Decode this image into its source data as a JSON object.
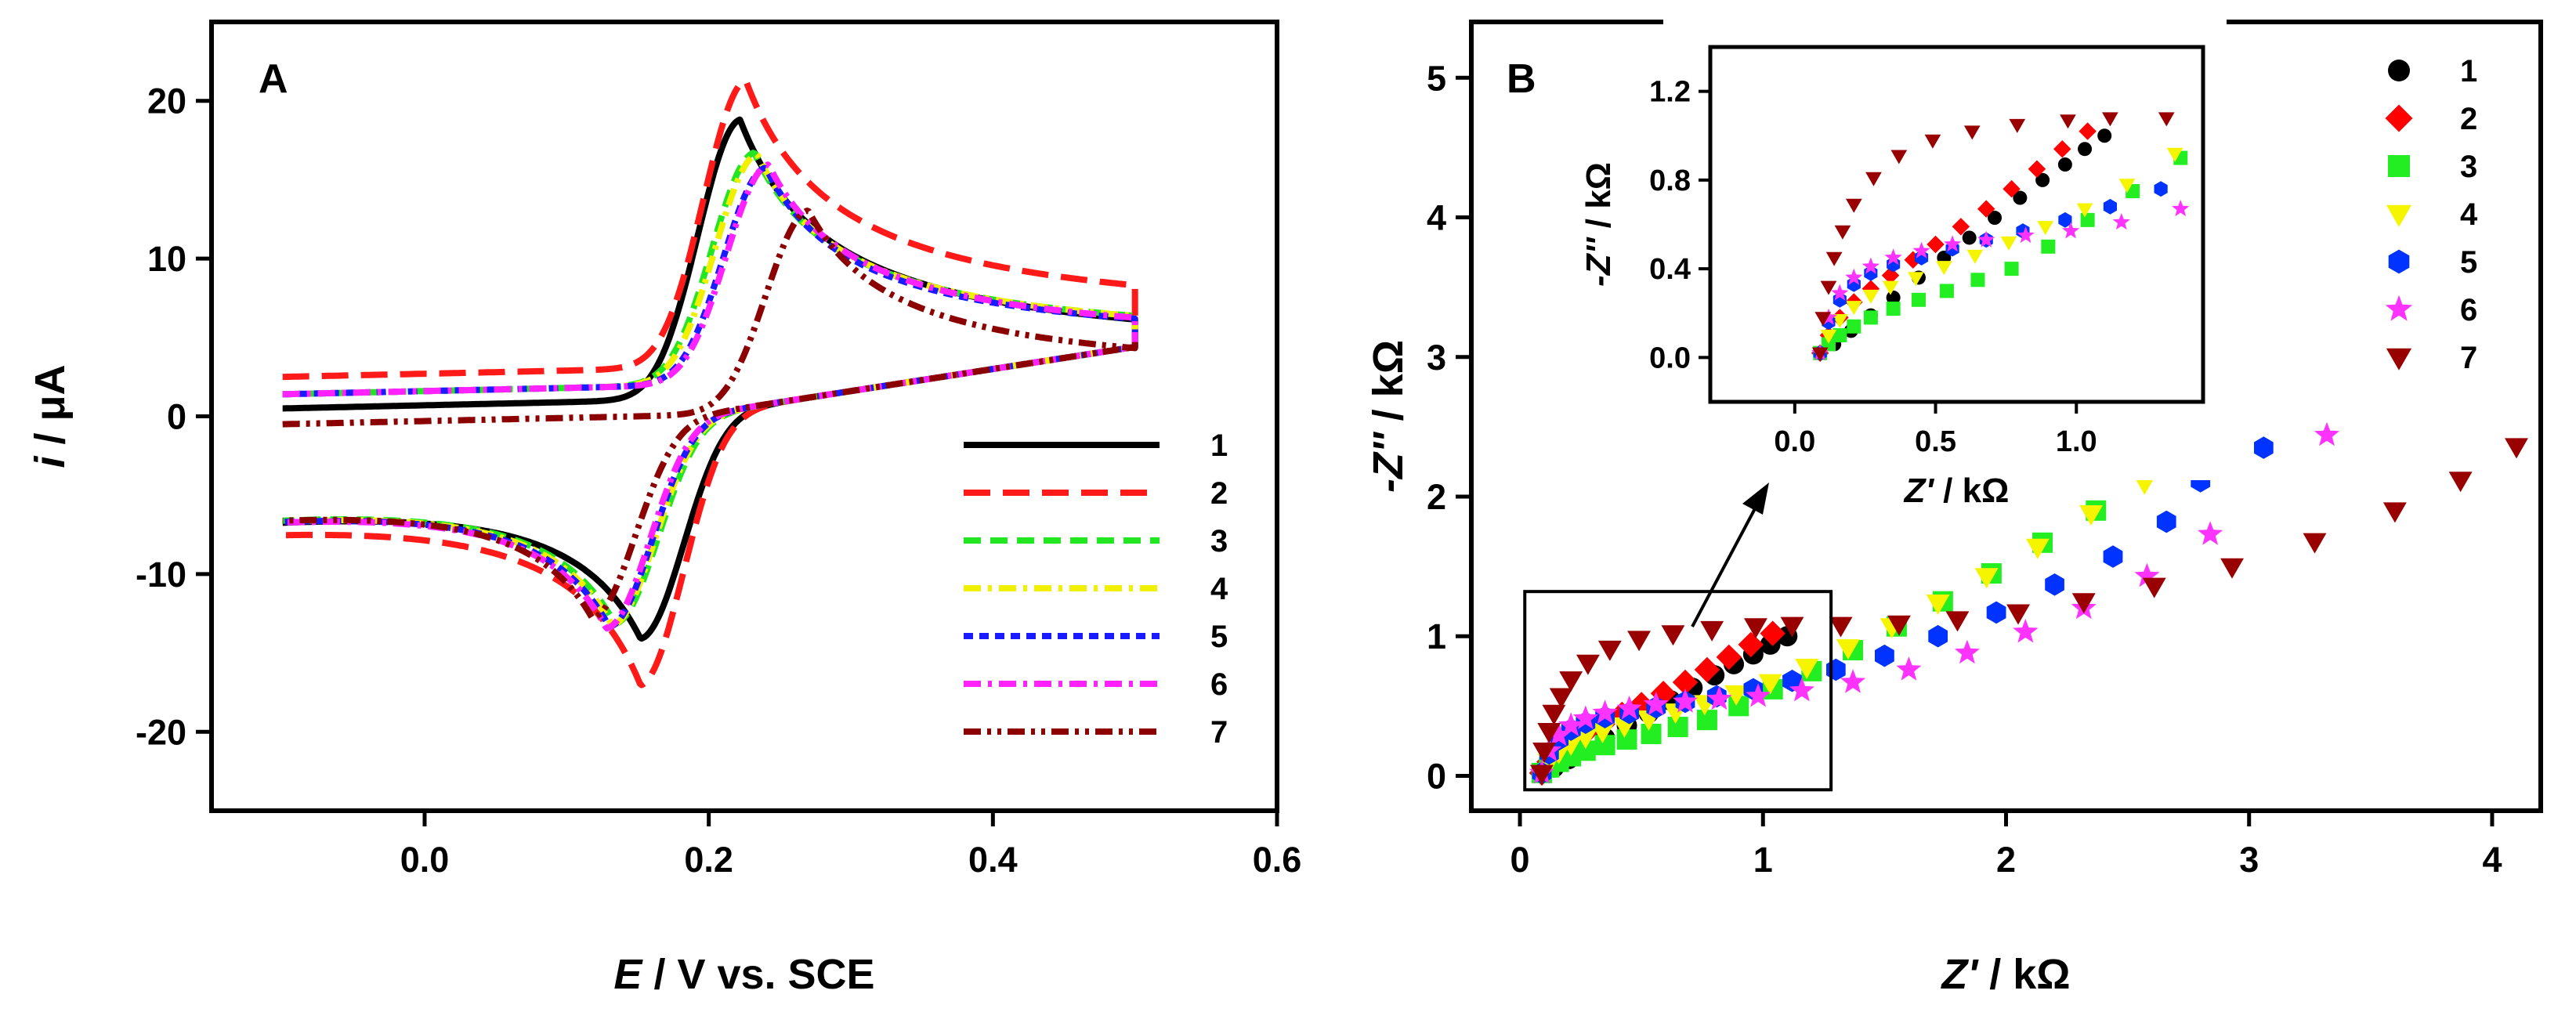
{
  "chart_data": [
    {
      "type": "line",
      "panel_label": "A",
      "xlabel": {
        "symbol": "E",
        "rest": " / V vs. SCE"
      },
      "ylabel": {
        "symbol": "i",
        "rest": " / μA"
      },
      "xlim": [
        -0.15,
        0.6
      ],
      "ylim": [
        -25,
        25
      ],
      "xticks": [
        0.0,
        0.2,
        0.4,
        0.6
      ],
      "yticks": [
        -20,
        -10,
        0,
        10,
        20
      ],
      "xtick_labels": [
        "0.0",
        "0.2",
        "0.4",
        "0.6"
      ],
      "ytick_labels": [
        "-20",
        "-10",
        "0",
        "10",
        "20"
      ],
      "legend_position": "bottom-right",
      "series": [
        {
          "name": "1",
          "color": "#000000",
          "dash": "solid",
          "E0": 0.185,
          "Ipa": 20.2,
          "Ipc": -14.8,
          "bg": 0.0,
          "E_pa": 0.222,
          "E_pc": 0.152
        },
        {
          "name": "2",
          "color": "#ff1a1a",
          "dash": "long-dash",
          "E0": 0.188,
          "Ipa": 22.7,
          "Ipc": -17.9,
          "bg": 2.0,
          "E_pa": 0.226,
          "E_pc": 0.152
        },
        {
          "name": "3",
          "color": "#22e622",
          "dash": "dash",
          "E0": 0.19,
          "Ipa": 18.0,
          "Ipc": -13.8,
          "bg": 0.9,
          "E_pa": 0.232,
          "E_pc": 0.134
        },
        {
          "name": "4",
          "color": "#f0f000",
          "dash": "dash-dot",
          "E0": 0.19,
          "Ipa": 17.9,
          "Ipc": -13.9,
          "bg": 0.9,
          "E_pa": 0.234,
          "E_pc": 0.132
        },
        {
          "name": "5",
          "color": "#1a1aff",
          "dash": "short-dash",
          "E0": 0.19,
          "Ipa": 17.0,
          "Ipc": -14.0,
          "bg": 0.9,
          "E_pa": 0.24,
          "E_pc": 0.13
        },
        {
          "name": "6",
          "color": "#ff22ff",
          "dash": "dash-dot",
          "E0": 0.19,
          "Ipa": 17.2,
          "Ipc": -14.1,
          "bg": 0.9,
          "E_pa": 0.242,
          "E_pc": 0.128
        },
        {
          "name": "7",
          "color": "#8b0000",
          "dash": "dash-dot-dot",
          "E0": 0.2,
          "Ipa": 14.2,
          "Ipc": -13.4,
          "bg": -1.0,
          "E_pa": 0.27,
          "E_pc": 0.118
        }
      ]
    },
    {
      "type": "scatter",
      "panel_label": "B",
      "xlabel": {
        "symbol": "Z'",
        "rest": " / kΩ"
      },
      "ylabel": {
        "symbol": "-Z''",
        "rest": " / kΩ"
      },
      "xlim": [
        -0.2,
        4.2
      ],
      "ylim": [
        -0.25,
        5.4
      ],
      "xticks": [
        0,
        1,
        2,
        3,
        4
      ],
      "yticks": [
        0,
        1,
        2,
        3,
        4,
        5
      ],
      "xtick_labels": [
        "0",
        "1",
        "2",
        "3",
        "4"
      ],
      "ytick_labels": [
        "0",
        "1",
        "2",
        "3",
        "4",
        "5"
      ],
      "legend_position": "top-right",
      "zoom_box": {
        "x": [
          0.02,
          1.28
        ],
        "y": [
          -0.1,
          1.32
        ]
      },
      "series": [
        {
          "name": "1",
          "color": "#000000",
          "marker": "circle",
          "x": [
            0.09,
            0.14,
            0.2,
            0.27,
            0.35,
            0.44,
            0.53,
            0.62,
            0.71,
            0.8,
            0.88,
            0.96,
            1.03,
            1.1
          ],
          "y": [
            0.02,
            0.06,
            0.12,
            0.19,
            0.27,
            0.36,
            0.45,
            0.54,
            0.63,
            0.72,
            0.8,
            0.87,
            0.94,
            1.0
          ]
        },
        {
          "name": "2",
          "color": "#ff0000",
          "marker": "diamond",
          "x": [
            0.09,
            0.12,
            0.16,
            0.21,
            0.27,
            0.34,
            0.42,
            0.5,
            0.59,
            0.68,
            0.77,
            0.86,
            0.95,
            1.04
          ],
          "y": [
            0.02,
            0.1,
            0.18,
            0.25,
            0.31,
            0.37,
            0.44,
            0.51,
            0.59,
            0.67,
            0.76,
            0.85,
            0.94,
            1.02
          ]
        },
        {
          "name": "3",
          "color": "#22ee22",
          "marker": "square",
          "x": [
            0.09,
            0.12,
            0.16,
            0.21,
            0.27,
            0.35,
            0.44,
            0.54,
            0.65,
            0.77,
            0.9,
            1.04,
            1.2,
            1.37,
            1.55,
            1.74,
            1.94,
            2.15,
            2.37,
            2.6
          ],
          "y": [
            0.02,
            0.06,
            0.1,
            0.14,
            0.18,
            0.22,
            0.26,
            0.3,
            0.35,
            0.4,
            0.5,
            0.62,
            0.75,
            0.9,
            1.07,
            1.25,
            1.45,
            1.67,
            1.9,
            2.24
          ]
        },
        {
          "name": "4",
          "color": "#f5f500",
          "marker": "triangle-down",
          "x": [
            0.09,
            0.12,
            0.16,
            0.21,
            0.27,
            0.34,
            0.43,
            0.53,
            0.64,
            0.76,
            0.89,
            1.03,
            1.18,
            1.35,
            1.53,
            1.72,
            1.92,
            2.13,
            2.35,
            2.57,
            2.77
          ],
          "y": [
            0.02,
            0.1,
            0.17,
            0.23,
            0.28,
            0.32,
            0.36,
            0.41,
            0.46,
            0.52,
            0.59,
            0.67,
            0.78,
            0.92,
            1.07,
            1.24,
            1.43,
            1.64,
            1.88,
            2.1,
            2.3
          ]
        },
        {
          "name": "5",
          "color": "#0033ff",
          "marker": "hexagon",
          "x": [
            0.09,
            0.12,
            0.16,
            0.21,
            0.27,
            0.35,
            0.45,
            0.56,
            0.68,
            0.81,
            0.96,
            1.12,
            1.3,
            1.5,
            1.72,
            1.96,
            2.2,
            2.44,
            2.66,
            2.8,
            3.06
          ],
          "y": [
            0.02,
            0.16,
            0.26,
            0.33,
            0.38,
            0.42,
            0.45,
            0.49,
            0.53,
            0.57,
            0.62,
            0.68,
            0.76,
            0.86,
            1.0,
            1.17,
            1.37,
            1.57,
            1.82,
            2.11,
            2.35
          ]
        },
        {
          "name": "6",
          "color": "#ff33ff",
          "marker": "star",
          "x": [
            0.09,
            0.12,
            0.16,
            0.21,
            0.27,
            0.35,
            0.45,
            0.56,
            0.68,
            0.82,
            0.98,
            1.16,
            1.37,
            1.6,
            1.84,
            2.08,
            2.32,
            2.58,
            2.84,
            3.32
          ],
          "y": [
            0.02,
            0.18,
            0.29,
            0.36,
            0.41,
            0.45,
            0.48,
            0.51,
            0.53,
            0.55,
            0.57,
            0.61,
            0.67,
            0.76,
            0.88,
            1.03,
            1.2,
            1.43,
            1.73,
            2.44
          ]
        },
        {
          "name": "7",
          "color": "#990000",
          "marker": "triangle-down",
          "x": [
            0.09,
            0.1,
            0.12,
            0.14,
            0.17,
            0.21,
            0.28,
            0.37,
            0.49,
            0.63,
            0.79,
            0.97,
            1.12,
            1.32,
            1.56,
            1.8,
            2.05,
            2.32,
            2.61,
            2.93,
            3.27,
            3.6,
            3.87,
            4.1
          ],
          "y": [
            0.02,
            0.18,
            0.32,
            0.45,
            0.57,
            0.69,
            0.81,
            0.91,
            0.98,
            1.02,
            1.05,
            1.07,
            1.08,
            1.08,
            1.09,
            1.12,
            1.17,
            1.25,
            1.36,
            1.5,
            1.68,
            1.9,
            2.12,
            2.36
          ]
        }
      ]
    },
    {
      "type": "scatter",
      "panel_label": "",
      "inset_of": "B",
      "xlabel": {
        "symbol": "Z'",
        "rest": " / kΩ"
      },
      "ylabel": {
        "symbol": "-Z''",
        "rest": " / kΩ"
      },
      "xlim": [
        -0.3,
        1.45
      ],
      "ylim": [
        -0.2,
        1.4
      ],
      "xticks": [
        0.0,
        0.5,
        1.0
      ],
      "yticks": [
        0.0,
        0.4,
        0.8,
        1.2
      ],
      "xtick_labels": [
        "0.0",
        "0.5",
        "1.0"
      ],
      "ytick_labels": [
        "0.0",
        "0.4",
        "0.8",
        "1.2"
      ],
      "series_source": "same as panel B, clipped to axis range"
    }
  ]
}
